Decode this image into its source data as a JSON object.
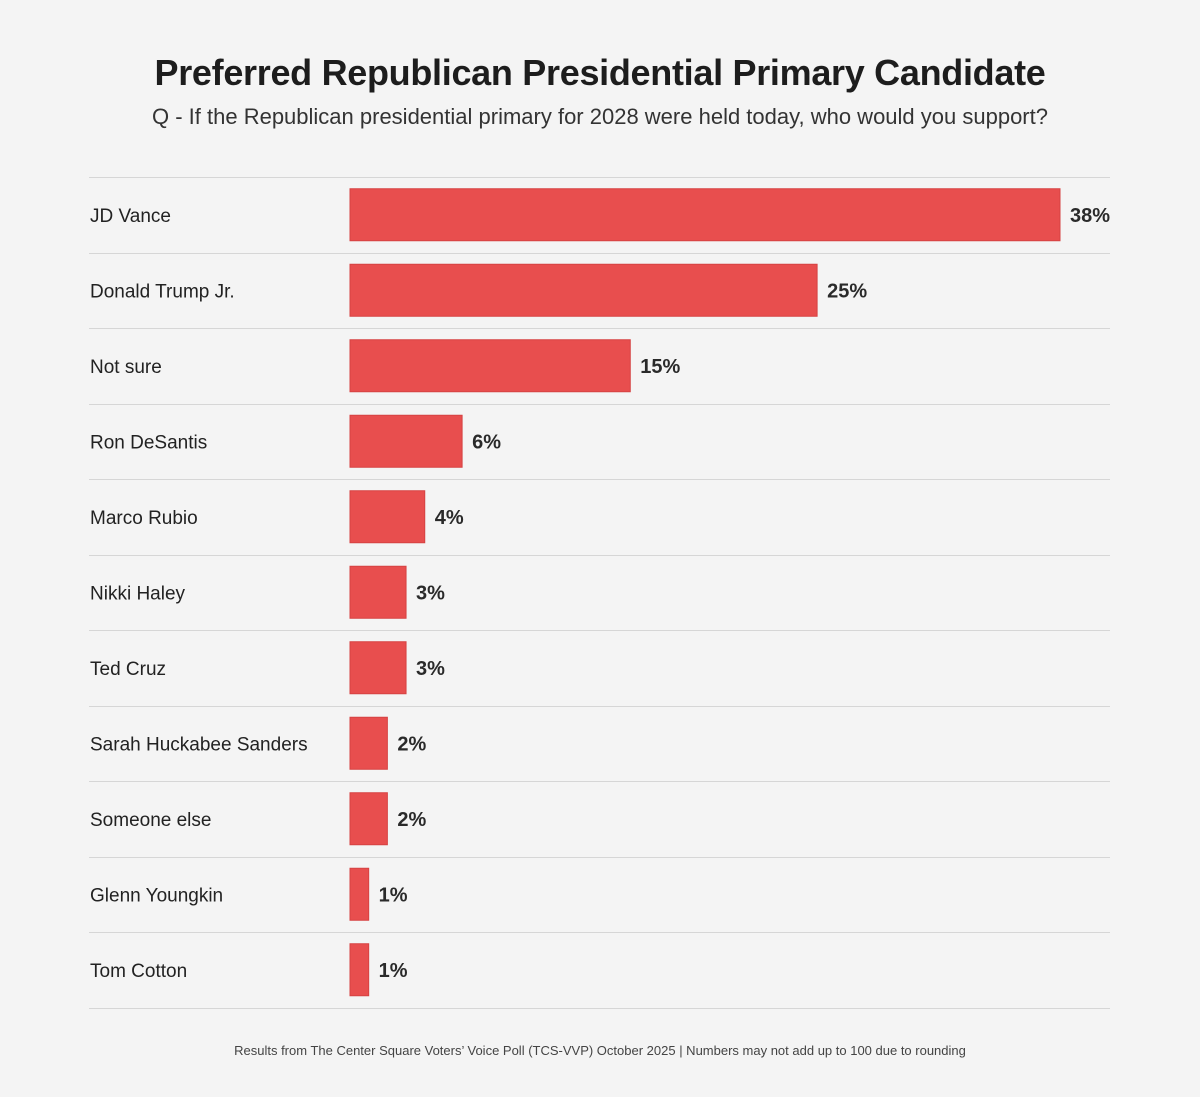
{
  "chart_data": {
    "type": "bar",
    "orientation": "horizontal",
    "title": "Preferred Republican Presidential Primary Candidate",
    "subtitle": "Q - If the Republican presidential primary for 2028 were held today, who would you support?",
    "categories": [
      "JD Vance",
      "Donald Trump Jr.",
      "Not sure",
      "Ron DeSantis",
      "Marco Rubio",
      "Nikki Haley",
      "Ted Cruz",
      "Sarah Huckabee Sanders",
      "Someone else",
      "Glenn Youngkin",
      "Tom Cotton"
    ],
    "values": [
      38,
      25,
      15,
      6,
      4,
      3,
      3,
      2,
      2,
      1,
      1
    ],
    "value_suffix": "%",
    "xlim": [
      0,
      38
    ],
    "bar_color": "#e84e4e",
    "footer": "Results from The Center Square Voters’ Voice Poll (TCS-VVP) October 2025 | Numbers may not add up to 100 due to rounding"
  }
}
